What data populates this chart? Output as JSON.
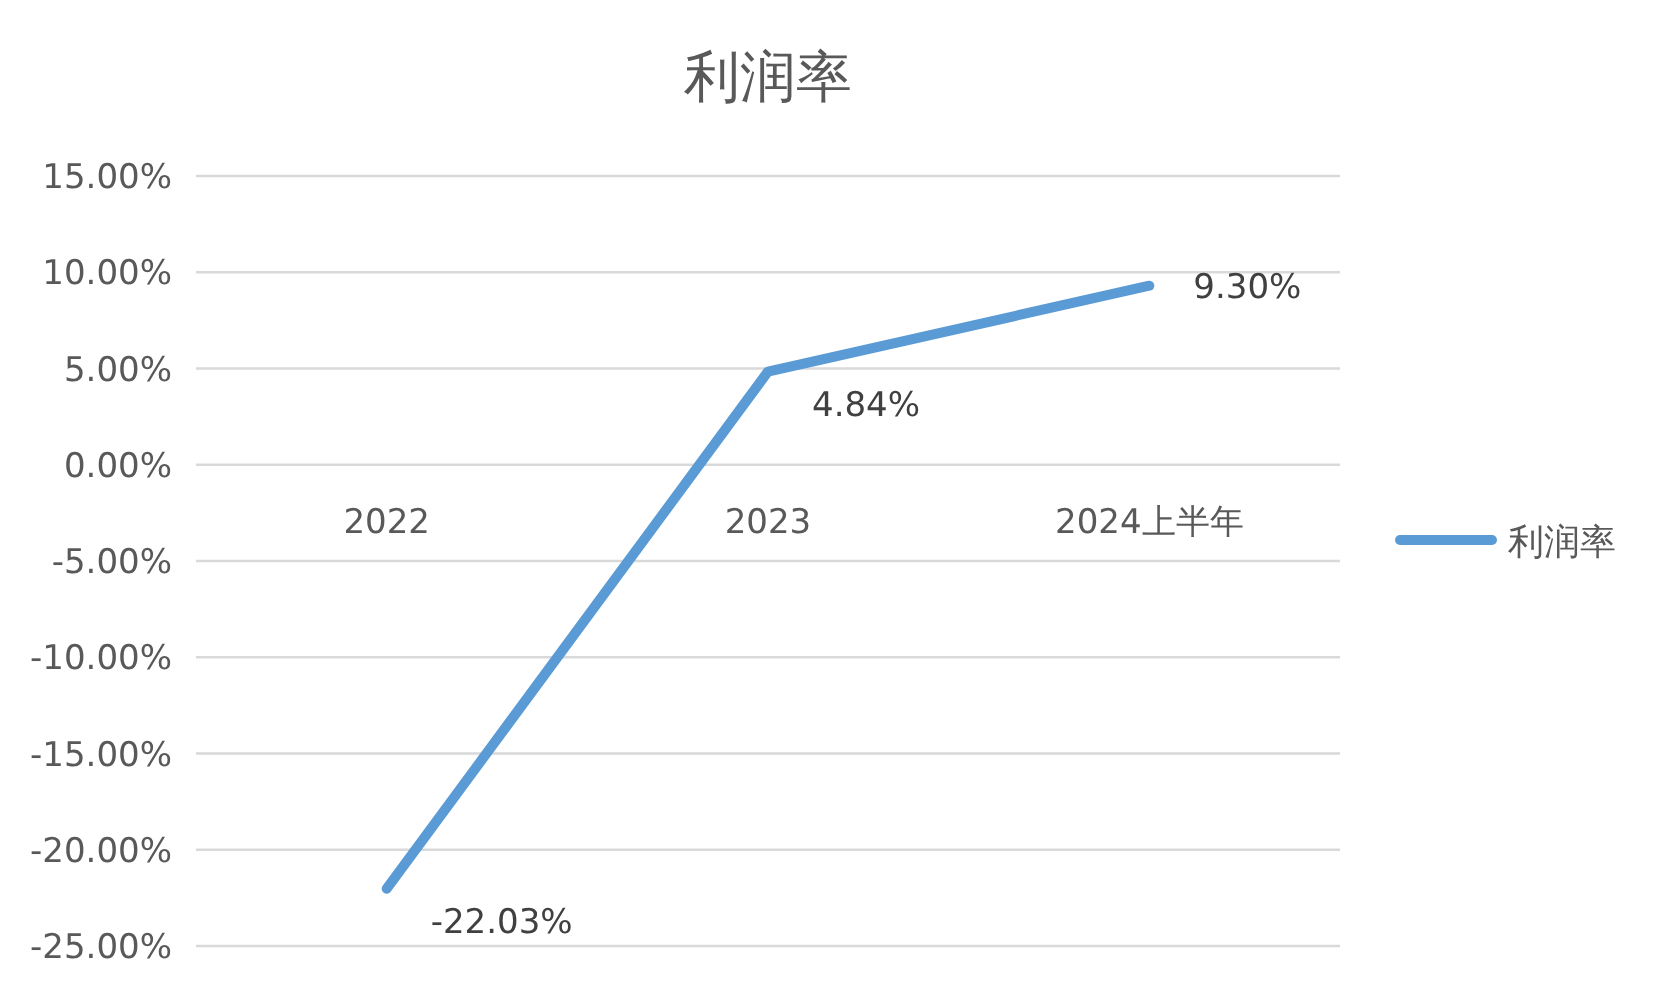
{
  "chart_data": {
    "type": "line",
    "title": "利润率",
    "categories": [
      "2022",
      "2023",
      "2024上半年"
    ],
    "series": [
      {
        "name": "利润率",
        "color": "#5b9bd5",
        "values": [
          -22.03,
          4.84,
          9.3
        ],
        "value_labels": [
          "-22.03%",
          "4.84%",
          "9.30%"
        ]
      }
    ],
    "ylim": [
      -25,
      15
    ],
    "yticks": [
      {
        "value": -25,
        "label": "-25.00%"
      },
      {
        "value": -20,
        "label": "-20.00%"
      },
      {
        "value": -15,
        "label": "-15.00%"
      },
      {
        "value": -10,
        "label": "-10.00%"
      },
      {
        "value": -5,
        "label": "-5.00%"
      },
      {
        "value": 0,
        "label": "0.00%"
      },
      {
        "value": 5,
        "label": "5.00%"
      },
      {
        "value": 10,
        "label": "10.00%"
      },
      {
        "value": 15,
        "label": "15.00%"
      }
    ],
    "grid": "y",
    "legend": "right",
    "marker": "none",
    "line_style": "solid"
  }
}
